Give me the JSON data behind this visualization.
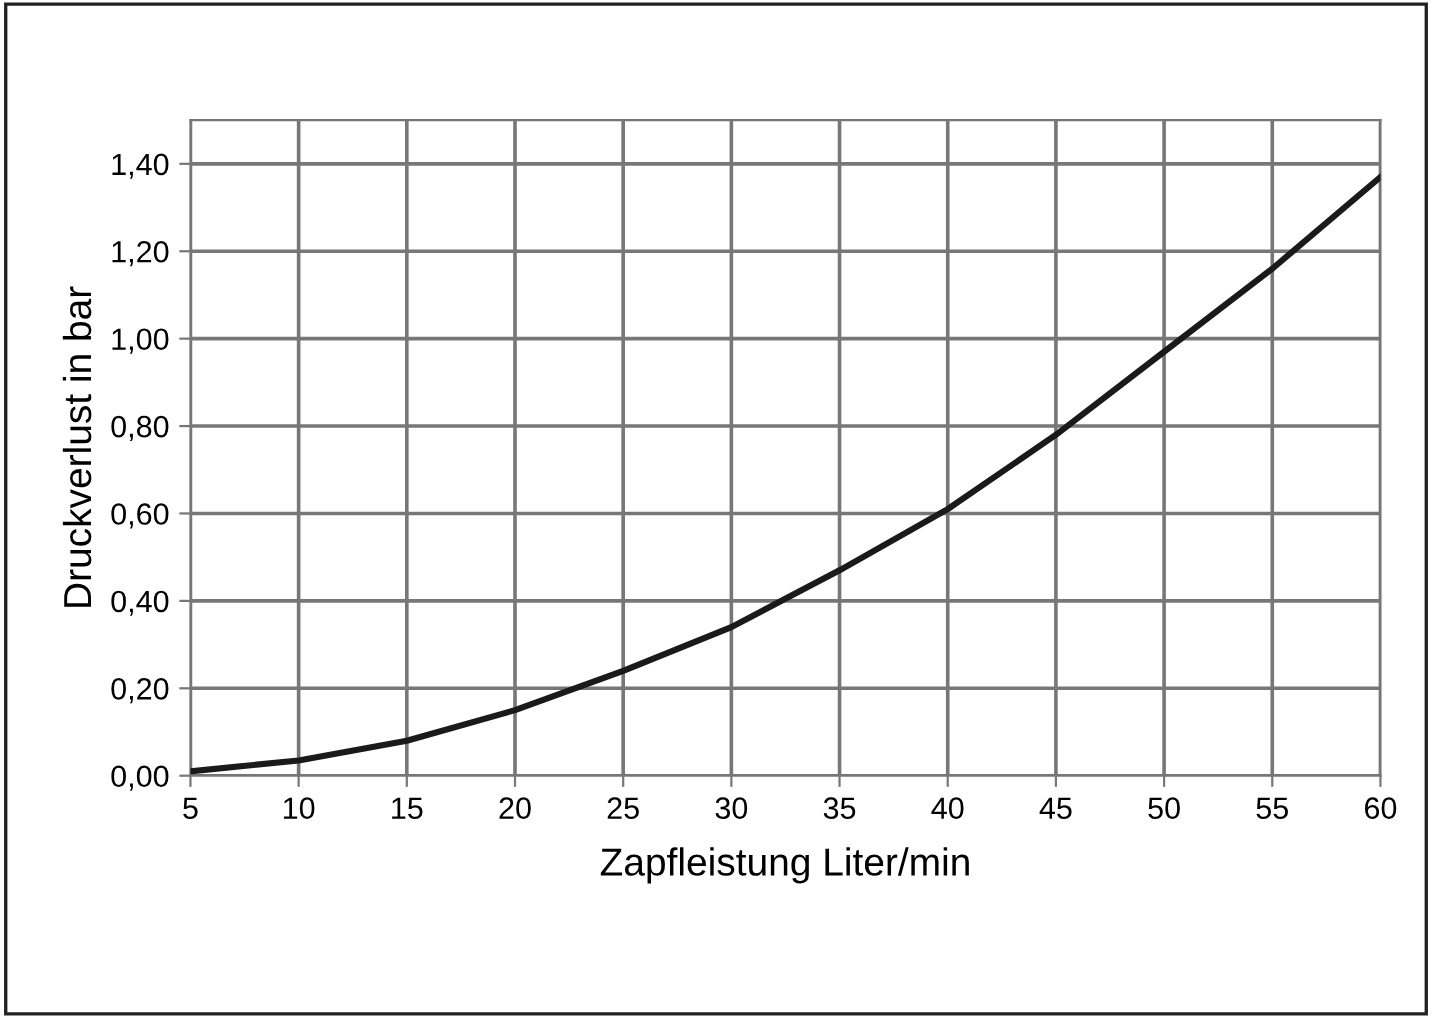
{
  "chart_data": {
    "type": "line",
    "xlabel": "Zapfleistung Liter/min",
    "ylabel": "Druckverlust in bar",
    "x": [
      5,
      10,
      15,
      20,
      25,
      30,
      35,
      40,
      45,
      50,
      55,
      60
    ],
    "series": [
      {
        "color": "#1a1a1a",
        "values": [
          0.01,
          0.035,
          0.08,
          0.15,
          0.24,
          0.34,
          0.47,
          0.61,
          0.78,
          0.97,
          1.16,
          1.37
        ]
      }
    ],
    "xlim": [
      5,
      60
    ],
    "xticks": [
      5,
      10,
      15,
      20,
      25,
      30,
      35,
      40,
      45,
      50,
      55,
      60
    ],
    "ylim": [
      0,
      1.5
    ],
    "yticks": [
      {
        "value": 0,
        "label": "0,00"
      },
      {
        "value": 0.2,
        "label": "0,20"
      },
      {
        "value": 0.4,
        "label": "0,40"
      },
      {
        "value": 0.6,
        "label": "0,60"
      },
      {
        "value": 0.8,
        "label": "0,80"
      },
      {
        "value": 1.0,
        "label": "1,00"
      },
      {
        "value": 1.2,
        "label": "1,20"
      },
      {
        "value": 1.4,
        "label": "1,40"
      }
    ],
    "grid": true,
    "marker": "none",
    "line_style": "solid",
    "legend": false
  }
}
